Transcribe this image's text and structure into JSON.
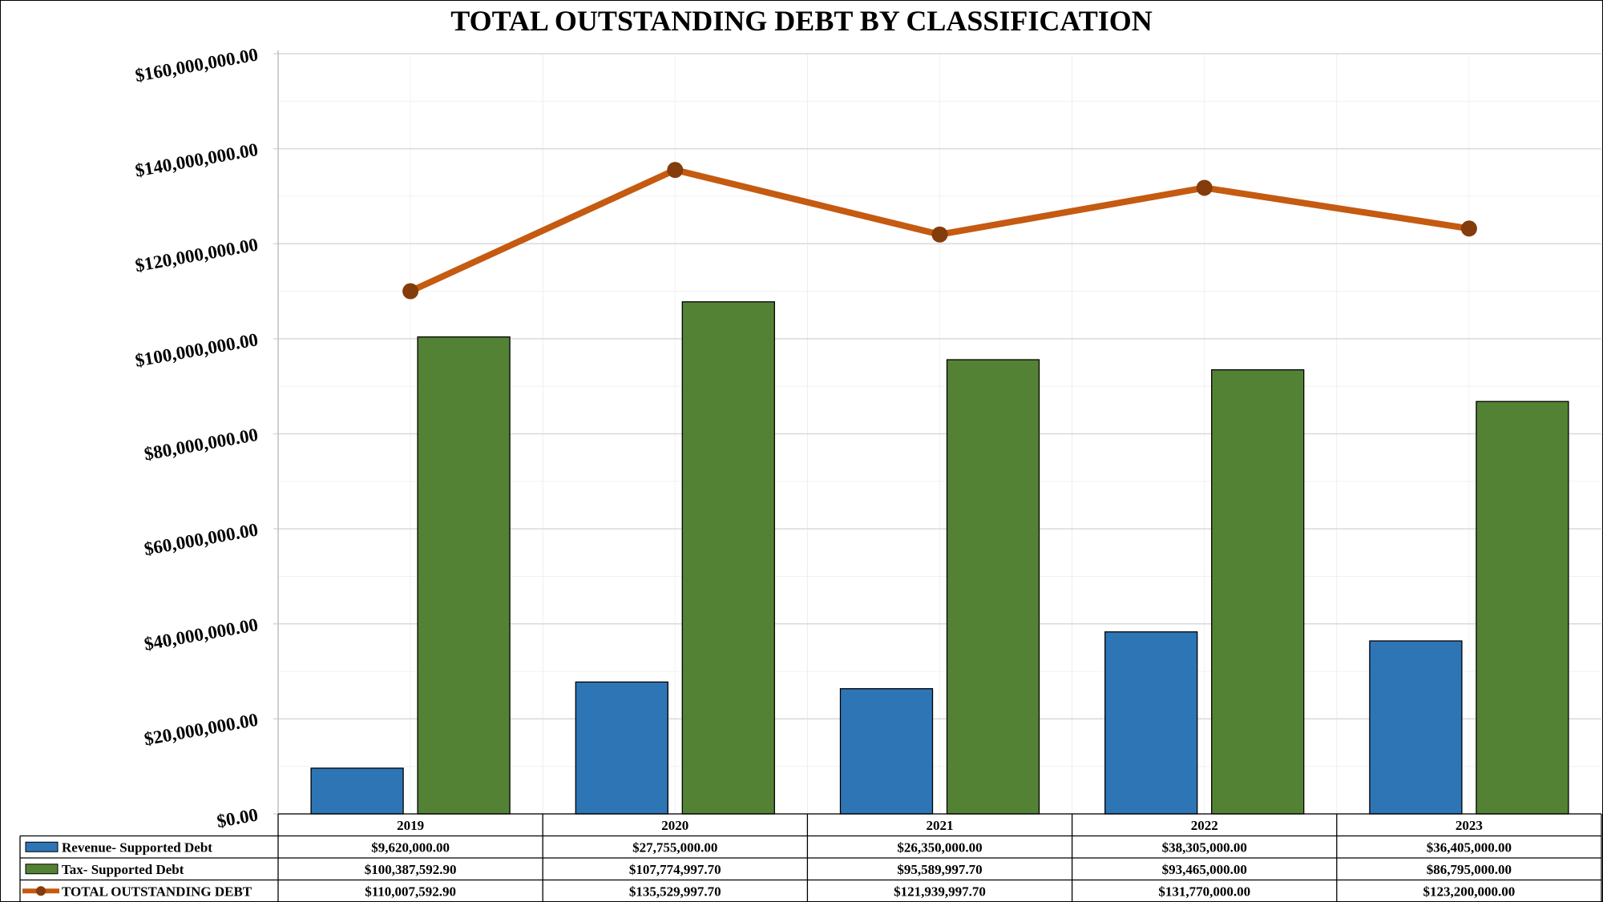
{
  "chart_data": {
    "type": "bar",
    "title": "TOTAL OUTSTANDING DEBT BY CLASSIFICATION",
    "categories": [
      "2019",
      "2020",
      "2021",
      "2022",
      "2023"
    ],
    "ylim": [
      0,
      160000000
    ],
    "yticks": [
      0,
      20000000,
      40000000,
      60000000,
      80000000,
      100000000,
      120000000,
      140000000,
      160000000
    ],
    "ytick_labels": [
      "$0.00",
      "$20,000,000.00",
      "$40,000,000.00",
      "$60,000,000.00",
      "$80,000,000.00",
      "$100,000,000.00",
      "$120,000,000.00",
      "$140,000,000.00",
      "$160,000,000.00"
    ],
    "grid": true,
    "legend_position": "data-table",
    "series": [
      {
        "name": "Revenue- Supported Debt",
        "kind": "bar",
        "color": "#2e75b6",
        "values": [
          9620000.0,
          27755000.0,
          26350000.0,
          38305000.0,
          36405000.0
        ],
        "labels": [
          "$9,620,000.00",
          "$27,755,000.00",
          "$26,350,000.00",
          "$38,305,000.00",
          "$36,405,000.00"
        ]
      },
      {
        "name": "Tax- Supported Debt",
        "kind": "bar",
        "color": "#548235",
        "values": [
          100387592.9,
          107774997.7,
          95589997.7,
          93465000.0,
          86795000.0
        ],
        "labels": [
          "$100,387,592.90",
          "$107,774,997.70",
          "$95,589,997.70",
          "$93,465,000.00",
          "$86,795,000.00"
        ]
      },
      {
        "name": "TOTAL OUTSTANDING DEBT",
        "kind": "line",
        "color": "#c55a11",
        "marker_color": "#843c0c",
        "values": [
          110007592.9,
          135529997.7,
          121939997.7,
          131770000.0,
          123200000.0
        ],
        "labels": [
          "$110,007,592.90",
          "$135,529,997.70",
          "$121,939,997.70",
          "$131,770,000.00",
          "$123,200,000.00"
        ]
      }
    ]
  }
}
